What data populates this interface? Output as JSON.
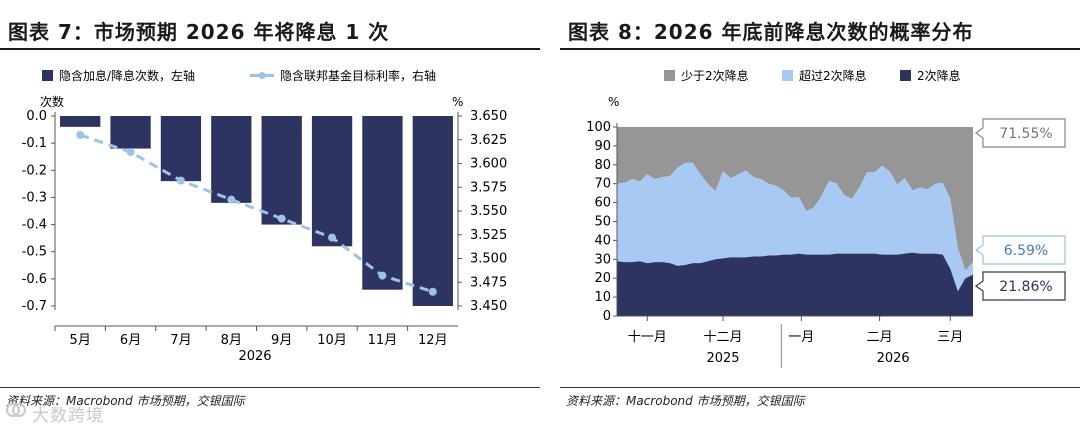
{
  "left": {
    "title": "图表 7：市场预期 2026 年将降息 1 次",
    "legend": {
      "bar_label": "隐含加息/降息次数，左轴",
      "line_label": "隐含联邦基金目标利率，右轴"
    },
    "left_axis_unit": "次数",
    "right_axis_unit": "%",
    "year_label": "2026",
    "source": "资料来源：Macrobond 市场预期，交银国际",
    "watermark": "大数跨境"
  },
  "right": {
    "title": "图表 8：2026 年底前降息次数的概率分布",
    "legend": [
      "少于2次降息",
      "超过2次降息",
      "2次降息"
    ],
    "y_axis_unit": "%",
    "x_ticks": [
      "十一月",
      "十二月",
      "一月",
      "二月",
      "三月"
    ],
    "x_years": [
      "2025",
      "2026"
    ],
    "callouts": [
      "71.55%",
      "6.59%",
      "21.86%"
    ],
    "source": "资料来源：Macrobond 市场预期，交银国际"
  },
  "colors": {
    "navy": "#2d3462",
    "light_blue": "#a9c9f5",
    "gray": "#969696",
    "line_blue": "#9fc2e8"
  },
  "chart_data": [
    {
      "type": "bar",
      "title": "",
      "categories": [
        "5月",
        "6月",
        "7月",
        "8月",
        "9月",
        "10月",
        "11月",
        "12月"
      ],
      "series": [
        {
          "name": "隐含加息/降息次数，左轴",
          "type": "bar",
          "axis": "left",
          "values": [
            -0.04,
            -0.12,
            -0.24,
            -0.32,
            -0.4,
            -0.48,
            -0.64,
            -0.7
          ]
        },
        {
          "name": "隐含联邦基金目标利率，右轴",
          "type": "line",
          "axis": "right",
          "values": [
            3.63,
            3.612,
            3.582,
            3.562,
            3.542,
            3.522,
            3.482,
            3.465
          ]
        }
      ],
      "left_ylim": [
        -0.7,
        0.0
      ],
      "left_yticks": [
        "0.0",
        "-0.1",
        "-0.2",
        "-0.3",
        "-0.4",
        "-0.5",
        "-0.6",
        "-0.7"
      ],
      "right_ylim": [
        3.45,
        3.65
      ],
      "right_yticks": [
        "3.650",
        "3.625",
        "3.600",
        "3.575",
        "3.550",
        "3.525",
        "3.500",
        "3.475",
        "3.450"
      ],
      "xlabel": "2026",
      "legend": "top"
    },
    {
      "type": "area",
      "title": "",
      "stacked": true,
      "ylim": [
        0,
        100
      ],
      "yticks": [
        "0",
        "10",
        "20",
        "30",
        "40",
        "50",
        "60",
        "70",
        "80",
        "90",
        "100"
      ],
      "x_range": [
        "2025-10-20",
        "2026-03-10"
      ],
      "x_ticks": [
        {
          "label": "十一月",
          "date": "2025-11-01"
        },
        {
          "label": "十二月",
          "date": "2025-12-01"
        },
        {
          "label": "一月",
          "date": "2026-01-01"
        },
        {
          "label": "二月",
          "date": "2026-02-01"
        },
        {
          "label": "三月",
          "date": "2026-03-01"
        }
      ],
      "x": [
        "2025-10-20",
        "2025-10-23",
        "2025-10-26",
        "2025-10-29",
        "2025-11-01",
        "2025-11-04",
        "2025-11-07",
        "2025-11-10",
        "2025-11-13",
        "2025-11-16",
        "2025-11-19",
        "2025-11-22",
        "2025-11-25",
        "2025-11-28",
        "2025-12-01",
        "2025-12-04",
        "2025-12-07",
        "2025-12-10",
        "2025-12-13",
        "2025-12-16",
        "2025-12-19",
        "2025-12-22",
        "2025-12-25",
        "2025-12-28",
        "2025-12-31",
        "2026-01-03",
        "2026-01-06",
        "2026-01-09",
        "2026-01-12",
        "2026-01-15",
        "2026-01-18",
        "2026-01-21",
        "2026-01-24",
        "2026-01-27",
        "2026-01-30",
        "2026-02-02",
        "2026-02-05",
        "2026-02-08",
        "2026-02-11",
        "2026-02-14",
        "2026-02-17",
        "2026-02-20",
        "2026-02-23",
        "2026-02-26",
        "2026-03-01",
        "2026-03-04",
        "2026-03-07",
        "2026-03-10"
      ],
      "series": [
        {
          "name": "2次降息",
          "values": [
            29,
            28.5,
            28.5,
            29,
            28,
            28.5,
            28.5,
            28,
            26.5,
            27,
            28,
            28,
            29,
            30,
            30.5,
            31,
            31,
            31,
            31.5,
            31.5,
            32,
            32,
            32.5,
            32.5,
            33,
            32.5,
            32.5,
            32.5,
            32.5,
            33,
            33,
            33,
            33,
            33,
            33,
            32.5,
            32.5,
            32.5,
            33,
            33.5,
            33,
            33,
            33,
            32.5,
            25,
            13,
            20,
            21.86
          ]
        },
        {
          "name": "超过2次降息",
          "values": [
            41,
            42,
            44,
            42,
            47,
            44,
            45,
            46,
            52,
            54,
            53,
            47,
            41,
            36,
            46,
            42,
            44,
            46,
            42,
            41,
            38,
            37,
            34,
            30,
            30,
            23,
            25,
            31,
            39,
            37,
            31,
            29,
            35,
            43,
            43,
            47,
            44,
            37,
            40,
            33,
            35,
            34,
            37,
            38,
            37,
            23,
            4,
            6.59
          ]
        },
        {
          "name": "少于2次降息",
          "values": [
            30,
            29.5,
            27.5,
            29,
            25,
            27.5,
            26.5,
            26,
            21.5,
            19,
            19,
            25,
            30,
            34,
            23.5,
            27,
            25,
            23,
            26.5,
            27.5,
            30,
            31,
            33.5,
            37.5,
            37,
            44.5,
            42.5,
            36.5,
            28.5,
            30,
            36,
            38,
            32,
            24,
            24,
            20.5,
            23.5,
            30.5,
            27,
            33.5,
            32,
            33,
            30,
            29.5,
            38,
            64,
            76,
            71.55
          ]
        }
      ],
      "callout_values": [
        71.55,
        6.59,
        21.86
      ],
      "legend": "top"
    }
  ]
}
